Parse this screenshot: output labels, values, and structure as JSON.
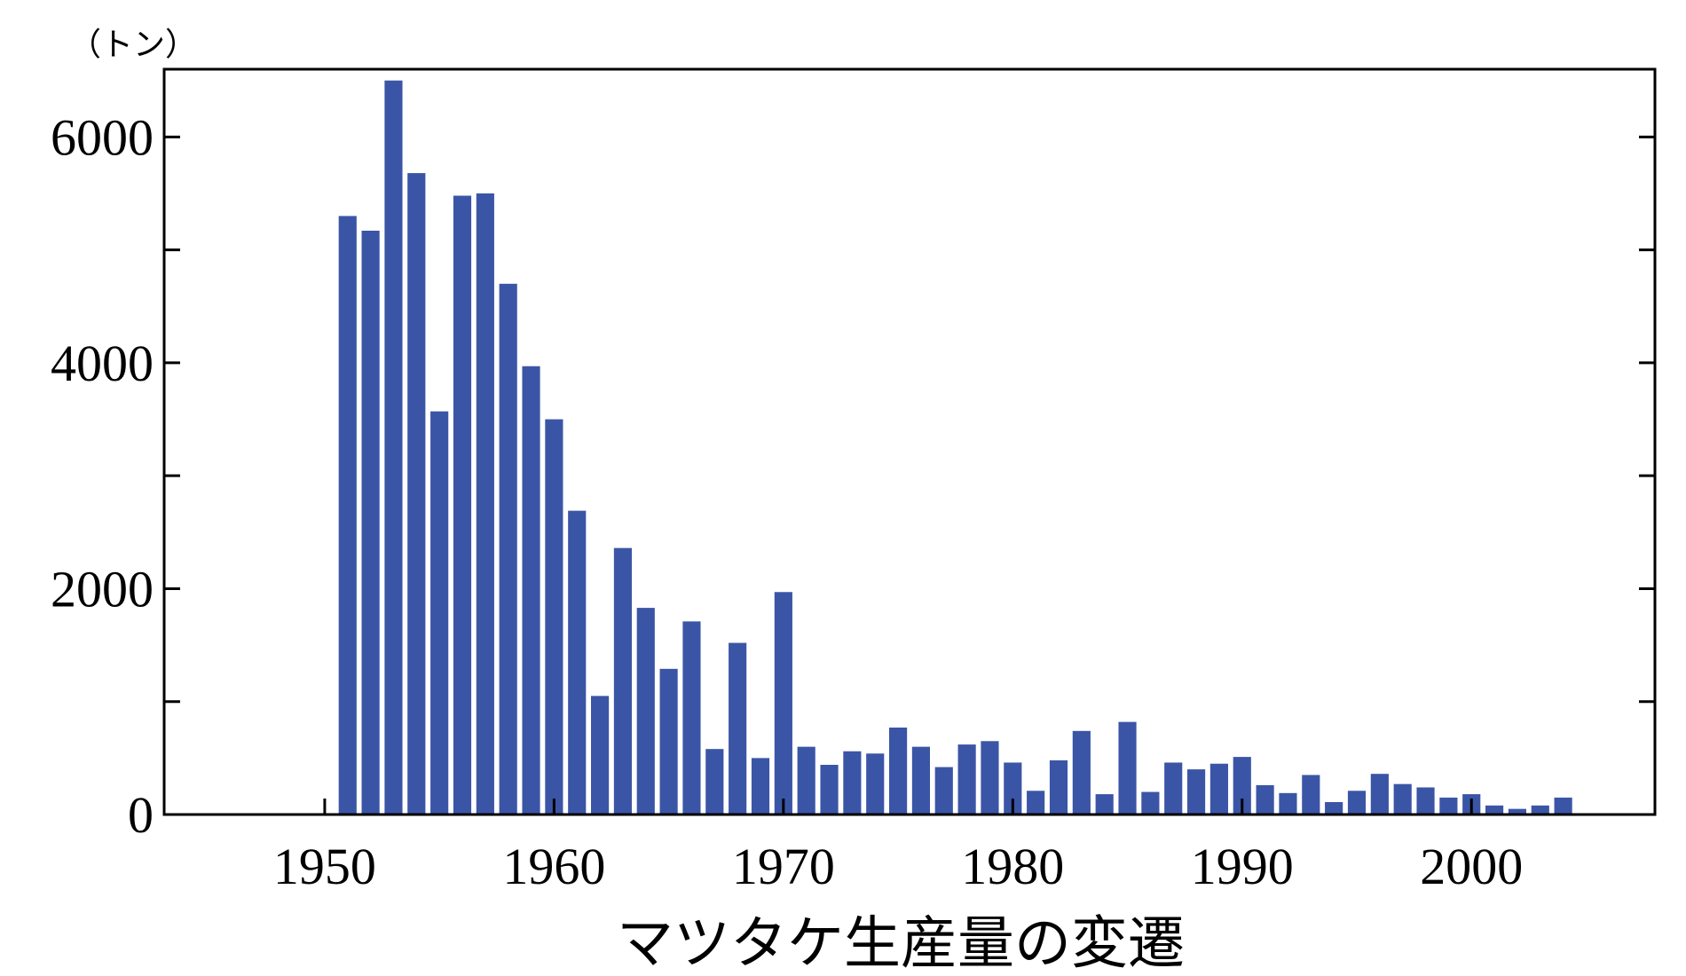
{
  "chart_data": {
    "type": "bar",
    "title": "マツタケ生産量の変遷",
    "unit_label": "（トン）",
    "xlabel": "",
    "ylabel": "",
    "xlim": [
      1943,
      2008
    ],
    "ylim": [
      0,
      6600
    ],
    "x_ticks": [
      1950,
      1960,
      1970,
      1980,
      1990,
      2000
    ],
    "y_tick_labels": [
      0,
      2000,
      4000,
      6000
    ],
    "y_minor_ticks": [
      1000,
      3000,
      5000
    ],
    "bar_color": "#3b55a6",
    "grid": false,
    "legend": "none",
    "x": [
      1951,
      1952,
      1953,
      1954,
      1955,
      1956,
      1957,
      1958,
      1959,
      1960,
      1961,
      1962,
      1963,
      1964,
      1965,
      1966,
      1967,
      1968,
      1969,
      1970,
      1971,
      1972,
      1973,
      1974,
      1975,
      1976,
      1977,
      1978,
      1979,
      1980,
      1981,
      1982,
      1983,
      1984,
      1985,
      1986,
      1987,
      1988,
      1989,
      1990,
      1991,
      1992,
      1993,
      1994,
      1995,
      1996,
      1997,
      1998,
      1999,
      2000,
      2001,
      2002,
      2003,
      2004
    ],
    "values": [
      5300,
      5170,
      6500,
      5680,
      3570,
      5480,
      5500,
      4700,
      3970,
      3500,
      2690,
      1050,
      2360,
      1830,
      1290,
      1710,
      580,
      1520,
      500,
      1970,
      600,
      440,
      560,
      540,
      770,
      600,
      420,
      620,
      650,
      460,
      210,
      480,
      740,
      180,
      820,
      200,
      460,
      400,
      450,
      510,
      260,
      190,
      350,
      110,
      210,
      360,
      270,
      240,
      150,
      180,
      80,
      50,
      80,
      150
    ]
  }
}
